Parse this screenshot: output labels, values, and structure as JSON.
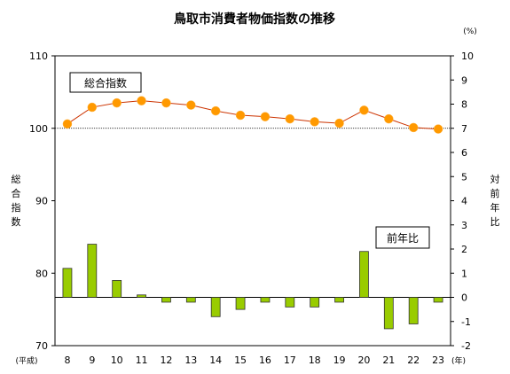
{
  "chart_data": {
    "title": "鳥取市消費者物価指数の推移",
    "type": "line+bar",
    "x_unit_left": "(平成)",
    "x_unit_right": "(年)",
    "right_unit": "(%)",
    "left_axis_label": [
      "総",
      "合",
      "指",
      "数"
    ],
    "right_axis_label": [
      "対",
      "前",
      "年",
      "比"
    ],
    "categories": [
      "8",
      "9",
      "10",
      "11",
      "12",
      "13",
      "14",
      "15",
      "16",
      "17",
      "18",
      "19",
      "20",
      "21",
      "22",
      "23"
    ],
    "left_ticks": [
      "70",
      "80",
      "90",
      "100",
      "110"
    ],
    "right_ticks": [
      "-2",
      "-1",
      "0",
      "1",
      "2",
      "3",
      "4",
      "5",
      "6",
      "7",
      "8",
      "9",
      "10"
    ],
    "ylim_left": [
      70,
      110
    ],
    "ylim_right": [
      -2,
      10
    ],
    "gridlines": "dotted at 100",
    "series": [
      {
        "name": "総合指数",
        "type": "line",
        "axis": "left",
        "color": "#ff9900",
        "line_color": "#cc3300",
        "values": [
          100.6,
          102.9,
          103.5,
          103.8,
          103.5,
          103.2,
          102.4,
          101.8,
          101.6,
          101.3,
          100.9,
          100.7,
          102.5,
          101.3,
          100.1,
          99.9
        ]
      },
      {
        "name": "前年比",
        "type": "bar",
        "axis": "right",
        "color": "#99cc00",
        "values": [
          1.2,
          2.2,
          0.7,
          0.1,
          -0.2,
          -0.2,
          -0.8,
          -0.5,
          -0.2,
          -0.4,
          -0.4,
          -0.2,
          1.9,
          -1.3,
          -1.1,
          -0.2
        ]
      }
    ]
  }
}
